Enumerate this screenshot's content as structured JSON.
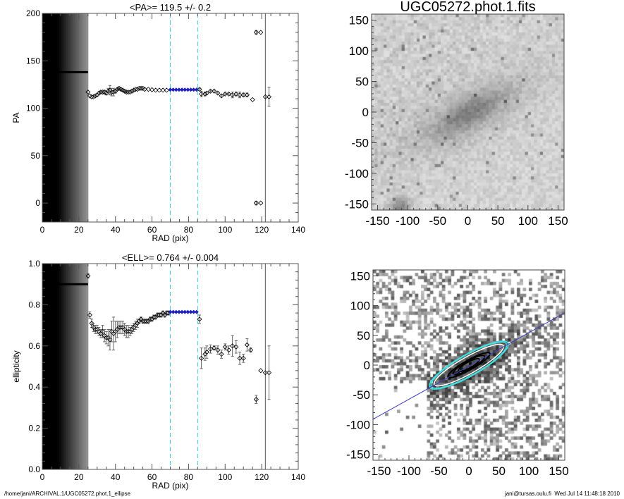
{
  "chart_data": [
    {
      "type": "scatter",
      "title": "<PA>= 119.5 +/-   0.2",
      "xlabel": "RAD (pix)",
      "ylabel": "PA",
      "xlim": [
        0,
        140
      ],
      "ylim": [
        -20,
        200
      ],
      "xticks": [
        "0",
        "20",
        "40",
        "60",
        "80",
        "100",
        "120",
        "140"
      ],
      "yticks": [
        "0",
        "50",
        "100",
        "150",
        "200"
      ],
      "inner_region": {
        "x_range": [
          0,
          25
        ],
        "value": 138
      },
      "fit_range": [
        70,
        85
      ],
      "vertical_line": 122,
      "fit_color": "#2020c0",
      "range_color": "#40d0e0",
      "points": {
        "x": [
          25,
          26,
          27,
          28,
          29,
          30,
          31,
          32,
          33,
          34,
          35,
          36,
          37,
          38,
          39,
          40,
          41,
          42,
          43,
          44,
          45,
          46,
          47,
          48,
          49,
          50,
          51,
          52,
          53,
          54,
          55,
          56,
          58,
          60,
          62,
          64,
          66,
          68,
          86,
          87,
          89,
          90,
          92,
          94,
          96,
          98,
          100,
          102,
          104,
          106,
          108,
          110,
          112,
          115,
          117,
          117,
          119.5,
          119.5,
          122,
          124
        ],
        "y": [
          117,
          113,
          112,
          112,
          113,
          114,
          116,
          117,
          117,
          117,
          116,
          118,
          119,
          117,
          117,
          118,
          120,
          121,
          120,
          119,
          118,
          117,
          117,
          117,
          118,
          119,
          120,
          120,
          121,
          121,
          121,
          120,
          120,
          119.5,
          119,
          119,
          119,
          119,
          120,
          115,
          115,
          116,
          118,
          118,
          116,
          113,
          115,
          115,
          114,
          115,
          114,
          114,
          114,
          109,
          180,
          0,
          180,
          0,
          112,
          112
        ],
        "err": [
          0,
          0,
          0,
          0,
          0,
          0,
          1,
          1,
          1,
          2,
          2,
          3,
          5,
          4,
          4,
          2,
          1,
          1,
          1,
          1,
          1,
          1,
          0,
          0,
          0,
          0,
          0,
          0,
          0,
          0,
          0,
          0,
          0,
          0,
          0,
          0,
          0,
          0,
          1,
          3,
          2,
          1,
          1,
          1,
          1,
          1,
          1,
          1,
          3,
          2,
          3,
          2,
          2,
          0,
          2,
          2,
          0,
          0,
          0,
          10
        ]
      },
      "fit_points": {
        "x": [
          70,
          71.6,
          73.2,
          74.8,
          76.4,
          78,
          79.6,
          81.2,
          82.8,
          84.4
        ],
        "y": [
          119.5,
          119.5,
          119.5,
          119.5,
          119.5,
          119.5,
          119.5,
          119.5,
          119.5,
          119.5
        ]
      }
    },
    {
      "type": "scatter",
      "title": "<ELL>= 0.764 +/-  0.004",
      "xlabel": "RAD (pix)",
      "ylabel": "ellipticity",
      "xlim": [
        0,
        140
      ],
      "ylim": [
        0,
        1
      ],
      "xticks": [
        "0",
        "20",
        "40",
        "60",
        "80",
        "100",
        "120",
        "140"
      ],
      "yticks": [
        "0.0",
        "0.2",
        "0.4",
        "0.6",
        "0.8",
        "1.0"
      ],
      "inner_region": {
        "x_range": [
          0,
          25
        ],
        "value": 0.9
      },
      "fit_range": [
        70,
        85
      ],
      "vertical_line": 122,
      "fit_color": "#2020c0",
      "range_color": "#40d0e0",
      "points": {
        "x": [
          25,
          26,
          27,
          28,
          29,
          30,
          31,
          32,
          33,
          34,
          35,
          36,
          37,
          38,
          39,
          40,
          41,
          42,
          43,
          44,
          45,
          46,
          47,
          48,
          49,
          50,
          51,
          52,
          53,
          54,
          55,
          56,
          57,
          58,
          59,
          60,
          61,
          62,
          63,
          64,
          65,
          66,
          67,
          68,
          69,
          86,
          87,
          89,
          90,
          92,
          94,
          96,
          98,
          100,
          102,
          104,
          106,
          108,
          110,
          112,
          114,
          117,
          119.5,
          122,
          124
        ],
        "y": [
          0.94,
          0.75,
          0.71,
          0.69,
          0.68,
          0.68,
          0.67,
          0.66,
          0.67,
          0.65,
          0.64,
          0.64,
          0.63,
          0.67,
          0.66,
          0.67,
          0.68,
          0.69,
          0.69,
          0.69,
          0.68,
          0.67,
          0.67,
          0.67,
          0.68,
          0.69,
          0.7,
          0.71,
          0.72,
          0.73,
          0.72,
          0.72,
          0.72,
          0.72,
          0.73,
          0.73,
          0.74,
          0.74,
          0.75,
          0.75,
          0.75,
          0.76,
          0.75,
          0.76,
          0.76,
          0.73,
          0.54,
          0.56,
          0.57,
          0.585,
          0.59,
          0.58,
          0.56,
          0.595,
          0.58,
          0.6,
          0.595,
          0.54,
          0.54,
          0.605,
          0.58,
          0.34,
          0.48,
          0.47,
          0.47
        ],
        "err": [
          0.01,
          0.015,
          0.02,
          0.02,
          0.02,
          0.02,
          0.02,
          0.02,
          0.03,
          0.03,
          0.03,
          0.04,
          0.05,
          0.05,
          0.08,
          0.05,
          0.04,
          0.03,
          0.03,
          0.03,
          0.03,
          0.03,
          0.03,
          0.02,
          0.02,
          0.02,
          0.02,
          0.02,
          0.01,
          0.01,
          0.01,
          0.01,
          0.01,
          0.01,
          0.01,
          0.01,
          0.01,
          0.01,
          0.01,
          0.01,
          0.01,
          0.01,
          0.01,
          0.01,
          0.01,
          0.02,
          0.05,
          0.03,
          0.03,
          0.02,
          0.01,
          0.02,
          0.02,
          0.015,
          0.02,
          0.05,
          0.03,
          0.03,
          0.02,
          0.03,
          0.01,
          0.02,
          0,
          0,
          0.13
        ]
      },
      "fit_points": {
        "x": [
          70,
          71.6,
          73.2,
          74.8,
          76.4,
          78,
          79.6,
          81.2,
          82.8,
          84.4
        ],
        "y": [
          0.765,
          0.765,
          0.765,
          0.765,
          0.765,
          0.765,
          0.765,
          0.765,
          0.765,
          0.765
        ]
      }
    },
    {
      "type": "heatmap",
      "title": "UGC05272.phot.1.fits",
      "xlim": [
        -160,
        160
      ],
      "ylim": [
        -160,
        160
      ],
      "xticks": [
        "-150",
        "-100",
        "-50",
        "0",
        "50",
        "100",
        "150"
      ],
      "yticks": [
        "-150",
        "-100",
        "-50",
        "0",
        "50",
        "100",
        "150"
      ]
    },
    {
      "type": "heatmap",
      "title": "",
      "xlim": [
        -160,
        160
      ],
      "ylim": [
        -160,
        160
      ],
      "xticks": [
        "-150",
        "-100",
        "-50",
        "0",
        "50",
        "100",
        "150"
      ],
      "yticks": [
        "-150",
        "-100",
        "-50",
        "0",
        "50",
        "100",
        "150"
      ],
      "major_axis_line_color": "#4040c0",
      "ellipse_color": "#40e0e0"
    }
  ],
  "footer": {
    "path": "/home/jani/ARCHIVAL.1/UGC05272.phot.1_ellipse",
    "stamp": "jani@tursas.oulu.fi  Wed Jul 14 11:48:18 2010"
  }
}
